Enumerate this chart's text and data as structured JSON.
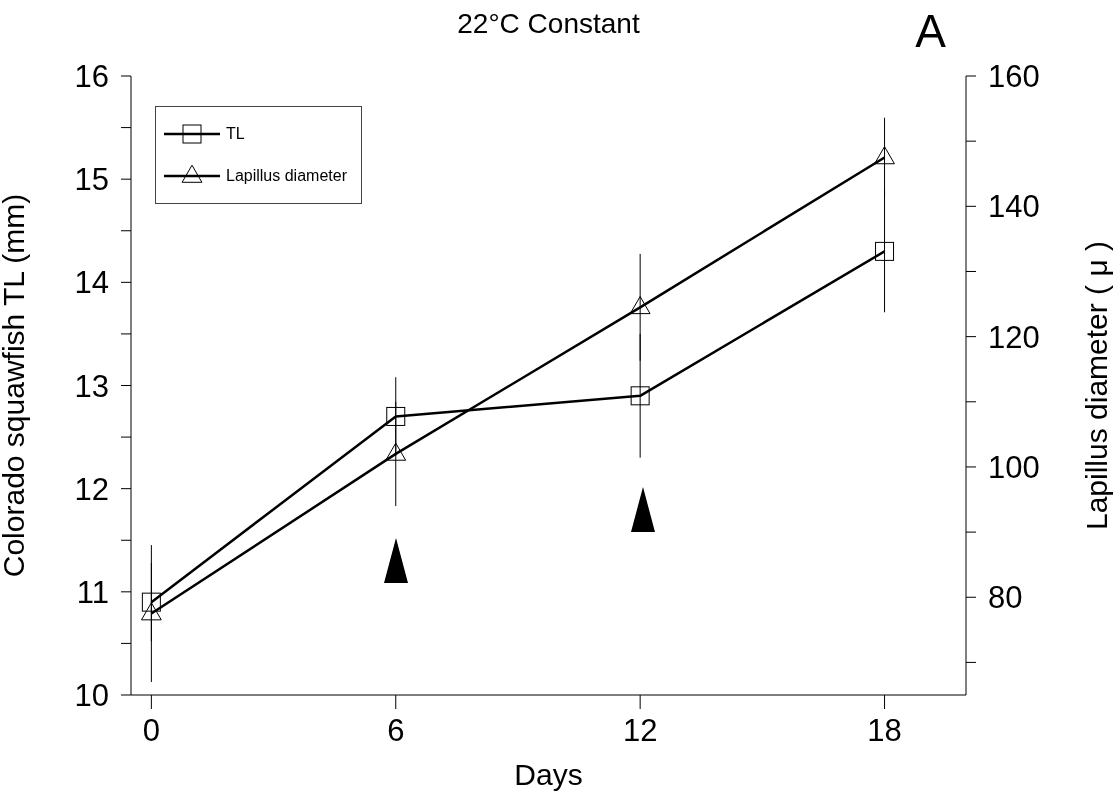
{
  "chart_data": {
    "type": "line",
    "title": "22°C Constant",
    "xlabel": "Days",
    "ylabel": "Colorado squawfish TL (mm)",
    "y2label": "Lapillus diameter ( μ )",
    "annotations": [
      "A"
    ],
    "x": [
      0,
      6,
      12,
      18
    ],
    "series": [
      {
        "name": "TL",
        "color": "#000000",
        "values": [
          10.9,
          12.7,
          12.9,
          14.3
        ],
        "errors": [
          0.38,
          0.38,
          0.6,
          0.59
        ],
        "marker": "square"
      },
      {
        "name": "Lapillus diameter",
        "color": "#000000",
        "values": [
          77.5,
          102,
          124.5,
          147.5
        ],
        "errors": [
          10.5,
          8,
          8.2,
          6.1
        ],
        "marker": "triangle",
        "axis": "y2"
      }
    ],
    "xlim": [
      -0.5,
      20
    ],
    "xticks": [
      0,
      6,
      12,
      18
    ],
    "ylim": [
      10,
      16
    ],
    "yticks": [
      10,
      {
        "value": 10.5,
        "label": null
      },
      11,
      {
        "value": 11.5,
        "label": null
      },
      12,
      {
        "value": 12.5,
        "label": null
      },
      13,
      {
        "value": 13.5,
        "label": null
      },
      14,
      {
        "value": 14.5,
        "label": null
      },
      15,
      {
        "value": 15.5,
        "label": null
      },
      16
    ],
    "y2lim": [
      65,
      160
    ],
    "y2ticks": [
      {
        "value": 70,
        "label": null
      },
      80,
      {
        "value": 90,
        "label": null
      },
      100,
      {
        "value": 110,
        "label": null
      },
      120,
      {
        "value": 130,
        "label": null
      },
      140,
      {
        "value": 150,
        "label": null
      },
      160
    ],
    "legend": "top left",
    "grid": false,
    "line_style": "solid"
  }
}
